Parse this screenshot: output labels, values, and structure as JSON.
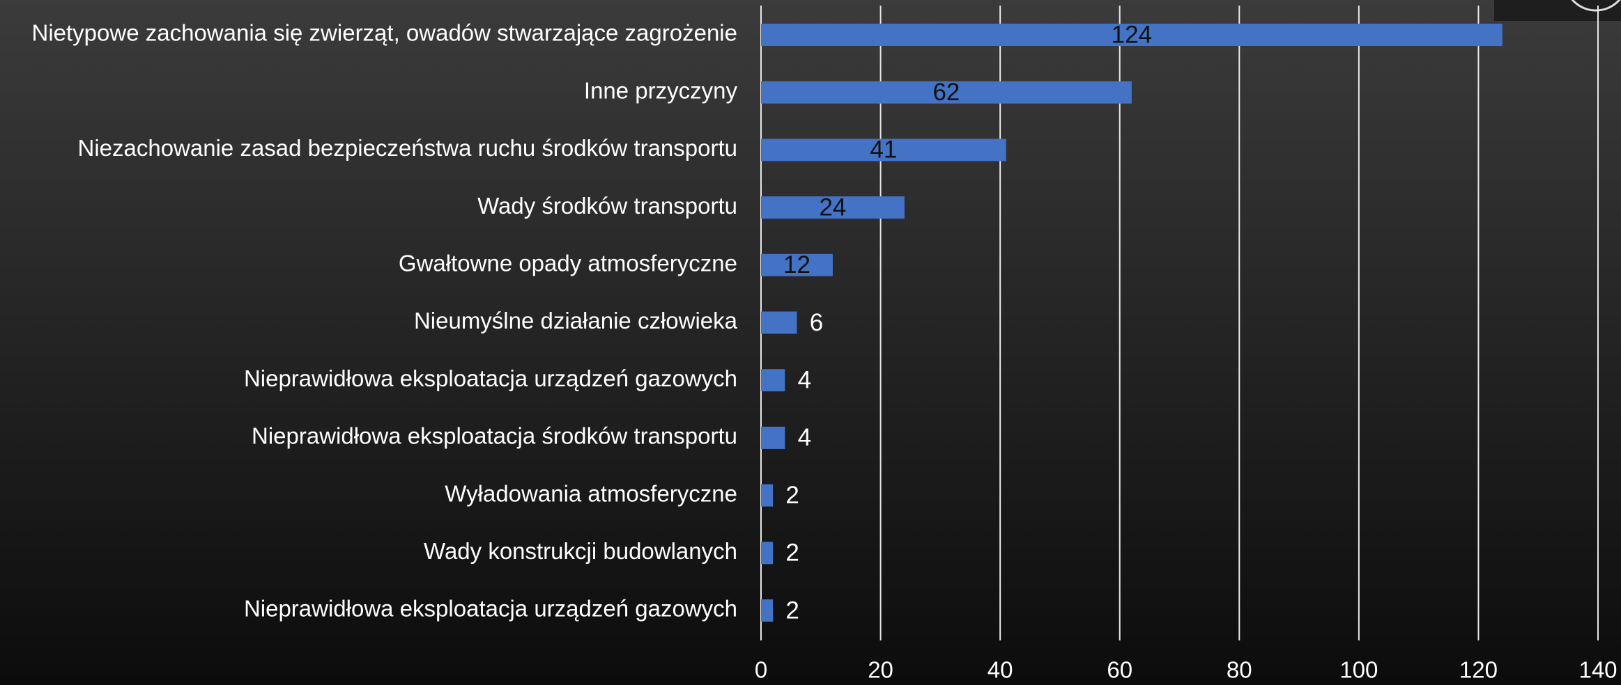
{
  "chart_data": {
    "type": "bar",
    "orientation": "horizontal",
    "categories": [
      "Nietypowe zachowania się zwierząt, owadów stwarzające zagrożenie",
      "Inne przyczyny",
      "Niezachowanie zasad bezpieczeństwa ruchu środków transportu",
      "Wady środków transportu",
      "Gwałtowne opady atmosferyczne",
      "Nieumyślne działanie człowieka",
      "Nieprawidłowa eksploatacja urządzeń gazowych",
      "Nieprawidłowa eksploatacja środków transportu",
      "Wyładowania atmosferyczne",
      "Wady konstrukcji budowlanych",
      "Nieprawidłowa eksploatacja urządzeń gazowych"
    ],
    "values": [
      124,
      62,
      41,
      24,
      12,
      6,
      4,
      4,
      2,
      2,
      2
    ],
    "color": "#4472c4",
    "xlim": [
      0,
      140
    ],
    "xticks": [
      0,
      20,
      40,
      60,
      80,
      100,
      120,
      140
    ],
    "grid": true
  }
}
